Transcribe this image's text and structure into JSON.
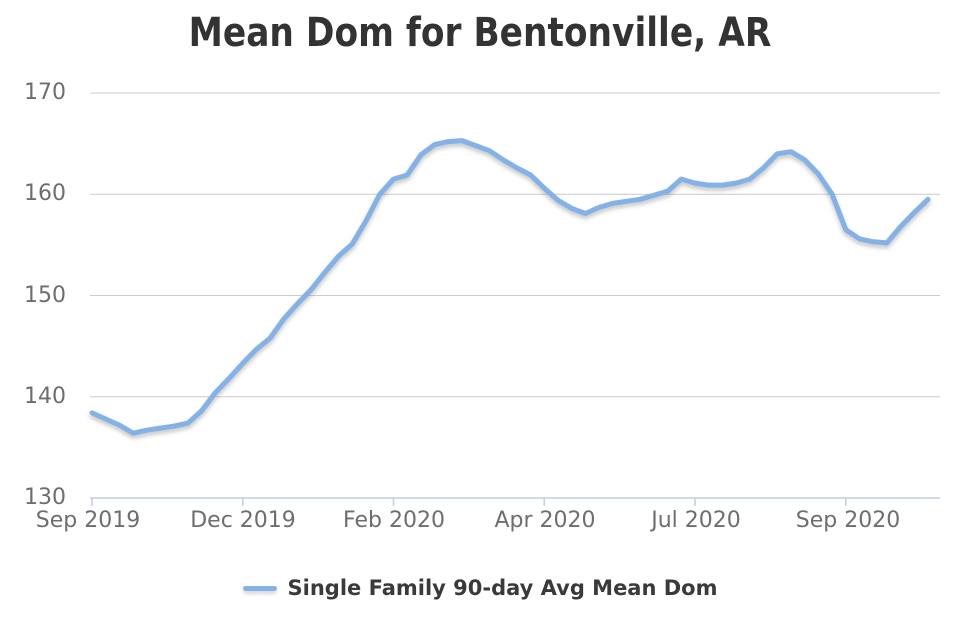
{
  "chart_data": {
    "type": "line",
    "title": "Mean Dom for Bentonville, AR",
    "xlabel": "",
    "ylabel": "",
    "ylim": [
      130,
      170
    ],
    "grid": "horizontal-only",
    "legend_position": "bottom-center",
    "y_tick_values": [
      170,
      160,
      150,
      140,
      130
    ],
    "y_tick_labels": [
      "170",
      "160",
      "150",
      "140",
      "130"
    ],
    "x_tick_labels": [
      "Sep 2019",
      "Dec 2019",
      "Feb 2020",
      "Apr 2020",
      "Jul 2020",
      "Sep 2020"
    ],
    "x_tick_indices": [
      0,
      11,
      22,
      33,
      44,
      55
    ],
    "series": [
      {
        "name": "Single Family 90-day Avg Mean Dom",
        "color": "#84b2e6",
        "values": [
          138.4,
          137.8,
          137.2,
          136.4,
          136.7,
          136.9,
          137.1,
          137.4,
          138.6,
          140.4,
          141.8,
          143.3,
          144.7,
          145.8,
          147.7,
          149.2,
          150.6,
          152.3,
          153.9,
          155.1,
          157.4,
          160.0,
          161.5,
          161.9,
          163.9,
          164.9,
          165.2,
          165.3,
          164.8,
          164.3,
          163.4,
          162.6,
          161.9,
          160.6,
          159.4,
          158.6,
          158.1,
          158.7,
          159.1,
          159.3,
          159.5,
          159.9,
          160.3,
          161.5,
          161.1,
          160.9,
          160.9,
          161.1,
          161.5,
          162.6,
          164.0,
          164.2,
          163.4,
          162.0,
          160.0,
          156.5,
          155.6,
          155.3,
          155.2,
          156.8,
          158.2,
          159.5
        ]
      }
    ]
  },
  "colors": {
    "background": "#ffffff",
    "line": "#84b2e6",
    "gridline": "#cccccc",
    "axis": "#c2cfdc",
    "tick_label": "#6e6e6e",
    "title_text": "#333333",
    "legend_text": "#3a3a3a"
  }
}
